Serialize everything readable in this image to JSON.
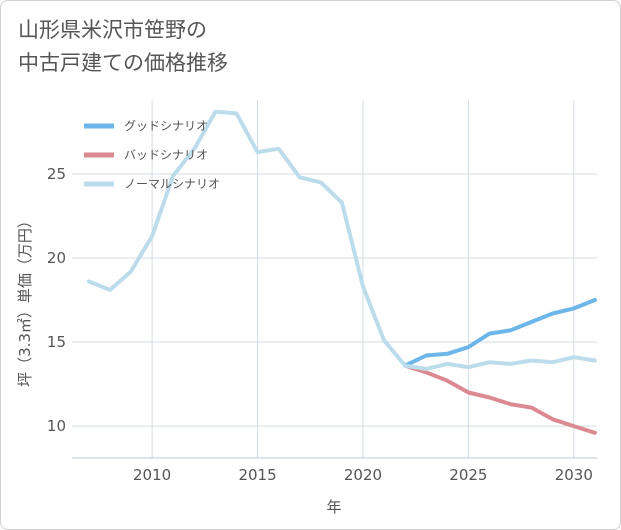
{
  "title_line1": "山形県米沢市笹野の",
  "title_line2": "中古戸建ての価格推移",
  "chart_data": {
    "type": "line",
    "xlabel": "年",
    "ylabel": "坪（3.3㎡）単価（万円）",
    "xlim": [
      2006.2,
      2031.1
    ],
    "ylim": [
      8.1,
      29.4
    ],
    "xticks": [
      2010,
      2015,
      2020,
      2025,
      2030
    ],
    "yticks": [
      10,
      15,
      20,
      25
    ],
    "grid": true,
    "legend_position": "top-left",
    "series": [
      {
        "name": "グッドシナリオ",
        "color": "#6cb6ea",
        "x": [
          2022,
          2023,
          2024,
          2025,
          2026,
          2027,
          2028,
          2029,
          2030,
          2031
        ],
        "y": [
          13.6,
          14.2,
          14.3,
          14.7,
          15.5,
          15.7,
          16.2,
          16.7,
          17.0,
          17.5
        ]
      },
      {
        "name": "バッドシナリオ",
        "color": "#dc8a92",
        "x": [
          2022,
          2023,
          2024,
          2025,
          2026,
          2027,
          2028,
          2029,
          2030,
          2031
        ],
        "y": [
          13.6,
          13.2,
          12.7,
          12.0,
          11.7,
          11.3,
          11.1,
          10.4,
          10.0,
          9.6
        ]
      },
      {
        "name": "ノーマルシナリオ",
        "color": "#bcdcec",
        "x": [
          2007,
          2008,
          2009,
          2010,
          2011,
          2012,
          2013,
          2014,
          2015,
          2016,
          2017,
          2018,
          2019,
          2020,
          2021,
          2022,
          2023,
          2024,
          2025,
          2026,
          2027,
          2028,
          2029,
          2030,
          2031
        ],
        "y": [
          18.6,
          18.1,
          19.2,
          21.3,
          24.9,
          26.5,
          28.7,
          28.6,
          26.3,
          26.5,
          24.8,
          24.5,
          23.3,
          18.3,
          15.1,
          13.6,
          13.4,
          13.7,
          13.5,
          13.8,
          13.7,
          13.9,
          13.8,
          14.1,
          13.9
        ]
      }
    ]
  }
}
